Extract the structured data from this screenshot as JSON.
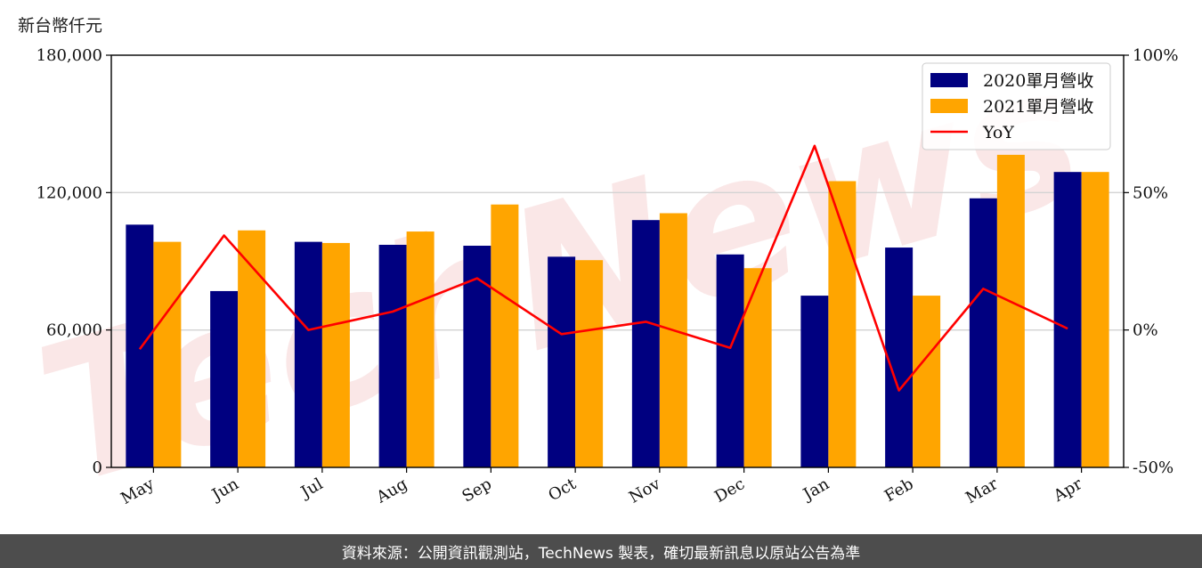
{
  "unit_label": "新台幣仟元",
  "footer_text": "資料來源：公開資訊觀測站，TechNews 製表，確切最新訊息以原站公告為準",
  "watermark_text": "TechNews",
  "colors": {
    "series_2020": "#000080",
    "series_2021": "#FFA500",
    "yoy": "#FF0000",
    "grid": "#d3d3d3",
    "watermark": "#f6d4d4"
  },
  "chart_data": {
    "type": "bar",
    "categories": [
      "May",
      "Jun",
      "Jul",
      "Aug",
      "Sep",
      "Oct",
      "Nov",
      "Dec",
      "Jan",
      "Feb",
      "Mar",
      "Apr"
    ],
    "series": [
      {
        "name": "2020單月營收",
        "values": [
          106000,
          77000,
          98500,
          97200,
          96800,
          92000,
          108000,
          93000,
          75000,
          96000,
          117500,
          129000
        ]
      },
      {
        "name": "2021單月營收",
        "values": [
          98500,
          103500,
          98000,
          103000,
          114800,
          90500,
          111000,
          87000,
          125000,
          75000,
          136500,
          129000
        ]
      }
    ],
    "line_series": {
      "name": "YoY",
      "axis": "right",
      "values": [
        -7,
        34.4,
        0,
        6.7,
        18.8,
        -1.5,
        3,
        -6.5,
        67,
        -22,
        15,
        0.5
      ]
    },
    "y_left": {
      "ticks": [
        0,
        60000,
        120000,
        180000
      ],
      "tick_labels": [
        "0",
        "60,000",
        "120,000",
        "180,000"
      ],
      "ylim": [
        0,
        180000
      ]
    },
    "y_right": {
      "ticks": [
        -50,
        0,
        50,
        100
      ],
      "tick_labels": [
        "-50%",
        "0%",
        "50%",
        "100%"
      ],
      "ylim": [
        -50,
        100
      ]
    },
    "grid": "horizontal",
    "legend_position": "top-right"
  }
}
